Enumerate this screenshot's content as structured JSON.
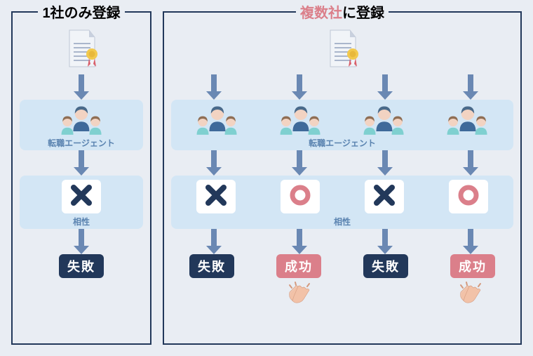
{
  "colors": {
    "navy": "#22385a",
    "rose": "#db7f8a",
    "arrow": "#6a88b3",
    "panel_border": "#22385a",
    "agents_bg": "#d3e6f5",
    "agent_label": "#5a83b0",
    "page_bg": "#e9edf3",
    "doc_paper": "#f1f4f8",
    "doc_fold": "#c8d0de",
    "doc_lines": "#aab6cc",
    "seal_gold": "#f2c94c",
    "seal_ribbon": "#d95f6a",
    "person_male_hair": "#4a6a8a",
    "person_male_shirt": "#3f6a9a",
    "person_female_hair": "#8f6e54",
    "person_female_shirt": "#7fd0d0",
    "skin": "#f2d3c2",
    "clap": "#f2c2a8"
  },
  "left": {
    "title_prefix": "1社のみ",
    "title_suffix": "登録",
    "agents_label": "転職エージェント",
    "compat_label": "相性",
    "lanes": [
      {
        "mark": "x",
        "result": "失敗",
        "result_color": "navy"
      }
    ]
  },
  "right": {
    "title_accent": "複数社",
    "title_middle": "に",
    "title_suffix": "登録",
    "agents_label": "転職エージェント",
    "compat_label": "相性",
    "lanes": [
      {
        "mark": "x",
        "result": "失敗",
        "result_color": "navy",
        "clap": false
      },
      {
        "mark": "o",
        "result": "成功",
        "result_color": "rose",
        "clap": true
      },
      {
        "mark": "x",
        "result": "失敗",
        "result_color": "navy",
        "clap": false
      },
      {
        "mark": "o",
        "result": "成功",
        "result_color": "rose",
        "clap": true
      }
    ]
  }
}
